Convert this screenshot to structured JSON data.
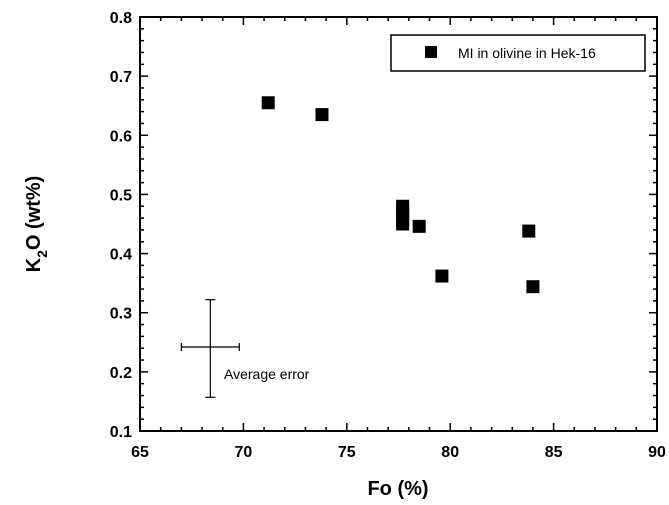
{
  "chart_data": {
    "type": "scatter",
    "xlabel": "Fo (%)",
    "ylabel": {
      "main": "K",
      "sub": "2",
      "rest": "O (wt%)"
    },
    "xlim": [
      65,
      90
    ],
    "ylim": [
      0.1,
      0.8
    ],
    "x_ticks": [
      "65",
      "70",
      "75",
      "80",
      "85",
      "90"
    ],
    "y_ticks": [
      "0.1",
      "0.2",
      "0.3",
      "0.4",
      "0.5",
      "0.6",
      "0.7",
      "0.8"
    ],
    "grid": false,
    "legend_position": "top-right",
    "series": [
      {
        "name": "MI in olivine in Hek-16",
        "marker": "square",
        "color": "#000000",
        "points": [
          {
            "x": 71.2,
            "y": 0.655
          },
          {
            "x": 73.8,
            "y": 0.635
          },
          {
            "x": 77.7,
            "y": 0.48
          },
          {
            "x": 77.7,
            "y": 0.472
          },
          {
            "x": 77.7,
            "y": 0.465
          },
          {
            "x": 77.7,
            "y": 0.457
          },
          {
            "x": 77.7,
            "y": 0.45
          },
          {
            "x": 78.5,
            "y": 0.446
          },
          {
            "x": 79.6,
            "y": 0.362
          },
          {
            "x": 83.8,
            "y": 0.438
          },
          {
            "x": 84.0,
            "y": 0.344
          }
        ]
      }
    ],
    "error_annotation": {
      "label": "Average error",
      "x": 68.4,
      "y": 0.242,
      "x_minus": 67.0,
      "x_plus": 69.8,
      "y_minus": 0.157,
      "y_plus": 0.322
    }
  }
}
